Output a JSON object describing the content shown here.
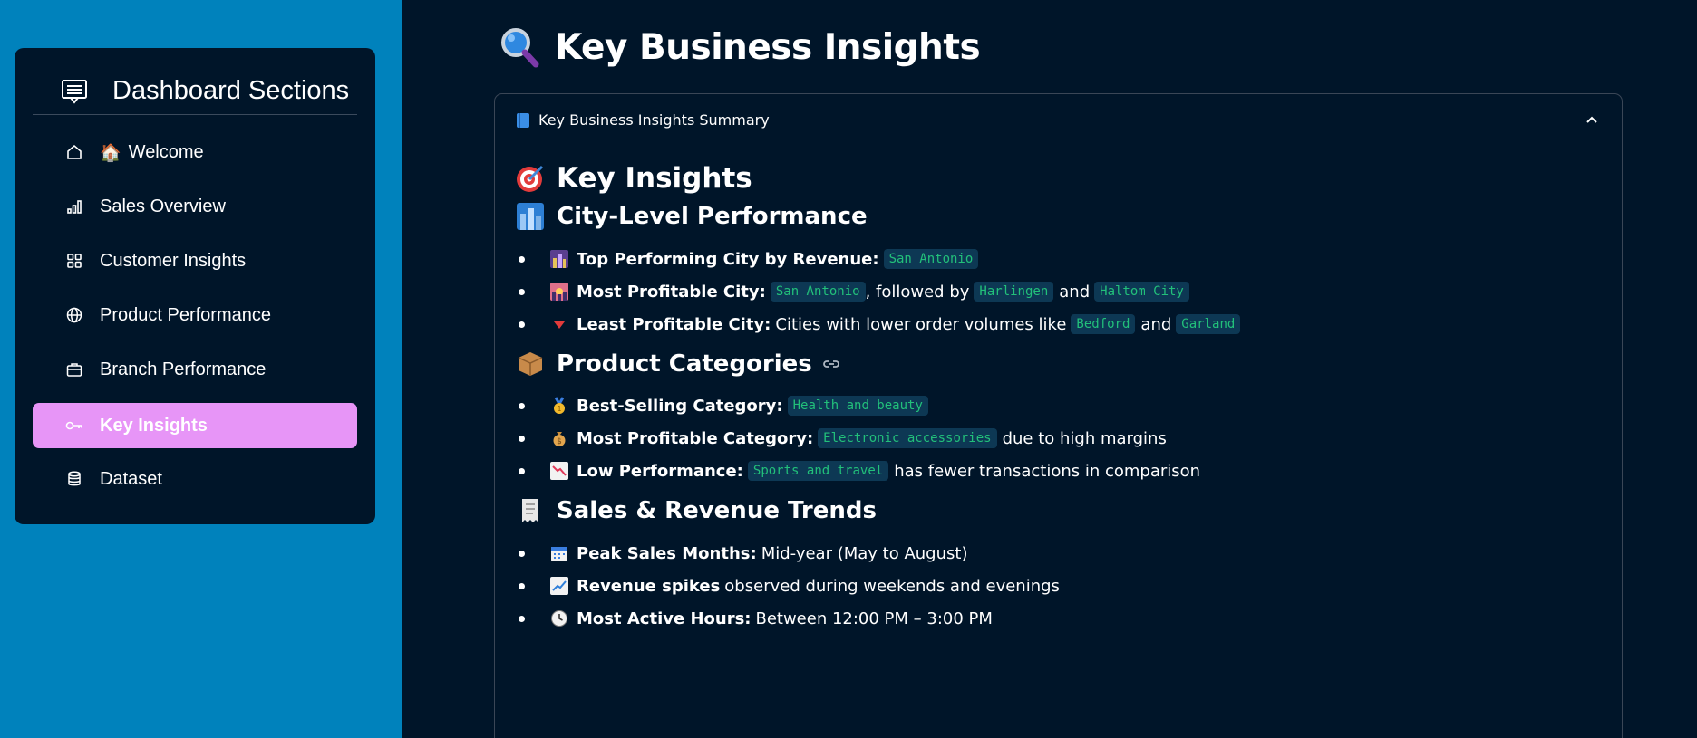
{
  "sidebar": {
    "title": "Dashboard Sections",
    "items": [
      {
        "label": "Welcome",
        "emoji": "🏠",
        "icon": "home-icon",
        "active": false
      },
      {
        "label": "Sales Overview",
        "icon": "bar-chart-icon",
        "active": false
      },
      {
        "label": "Customer Insights",
        "icon": "grid-icon",
        "active": false
      },
      {
        "label": "Product Performance",
        "icon": "globe-icon",
        "active": false
      },
      {
        "label": "Branch Performance",
        "icon": "briefcase-icon",
        "active": false
      },
      {
        "label": "Key Insights",
        "icon": "key-icon",
        "active": true
      },
      {
        "label": "Dataset",
        "icon": "database-icon",
        "active": false
      }
    ],
    "active_color": "#e795f7",
    "bg_color": "#0082bc"
  },
  "page": {
    "title": "Key Business Insights",
    "title_icon": "magnifier-icon"
  },
  "expander": {
    "label": "Key Business Insights Summary",
    "icon": "book-icon",
    "expanded": true
  },
  "content": {
    "heading": "Key Insights",
    "heading_icon": "target-icon",
    "sections": [
      {
        "title": "City-Level Performance",
        "icon": "cityscape-icon",
        "items": [
          {
            "icon": "night-city-icon",
            "bold": "Top Performing City by Revenue:",
            "code1": "San Antonio"
          },
          {
            "icon": "sunset-city-icon",
            "bold": "Most Profitable City:",
            "code1": "San Antonio",
            "text1": ", followed by",
            "code2": "Harlingen",
            "text2": "and",
            "code3": "Haltom City"
          },
          {
            "icon": "down-triangle-icon",
            "bold": "Least Profitable City:",
            "text1": "Cities with lower order volumes like",
            "code1": "Bedford",
            "text2": "and",
            "code2": "Garland"
          }
        ]
      },
      {
        "title": "Product Categories",
        "icon": "package-icon",
        "items": [
          {
            "icon": "gold-medal-icon",
            "bold": "Best-Selling Category:",
            "code1": "Health and beauty"
          },
          {
            "icon": "money-bag-icon",
            "bold": "Most Profitable Category:",
            "code1": "Electronic accessories",
            "text1": "due to high margins"
          },
          {
            "icon": "chart-down-icon",
            "bold": "Low Performance:",
            "code1": "Sports and travel",
            "text1": "has fewer transactions in comparison"
          }
        ]
      },
      {
        "title": "Sales & Revenue Trends",
        "icon": "receipt-icon",
        "items": [
          {
            "icon": "calendar-icon",
            "bold": "Peak Sales Months:",
            "text1": "Mid-year (May to August)"
          },
          {
            "icon": "chart-up-icon",
            "bold": "Revenue spikes",
            "text1": "observed during weekends and evenings"
          },
          {
            "icon": "clock-icon",
            "bold": "Most Active Hours:",
            "text1": "Between 12:00 PM – 3:00 PM"
          }
        ]
      }
    ],
    "code_color": "#22c07a",
    "code_bg": "#0d3854"
  }
}
